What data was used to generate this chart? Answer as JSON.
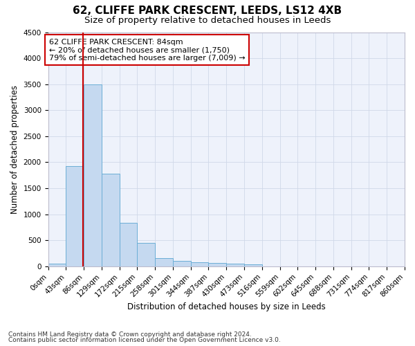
{
  "title1": "62, CLIFFE PARK CRESCENT, LEEDS, LS12 4XB",
  "title2": "Size of property relative to detached houses in Leeds",
  "xlabel": "Distribution of detached houses by size in Leeds",
  "ylabel": "Number of detached properties",
  "bar_color": "#c5d9f0",
  "bar_edge_color": "#6baed6",
  "grid_color": "#d0d8e8",
  "bg_color": "#eef2fb",
  "annotation_box_color": "#cc0000",
  "annotation_line1": "62 CLIFFE PARK CRESCENT: 84sqm",
  "annotation_line2": "← 20% of detached houses are smaller (1,750)",
  "annotation_line3": "79% of semi-detached houses are larger (7,009) →",
  "property_line_x": 84,
  "property_line_color": "#cc0000",
  "bin_edges": [
    0,
    43,
    86,
    129,
    172,
    215,
    258,
    301,
    344,
    387,
    430,
    473,
    516,
    559,
    602,
    645,
    688,
    731,
    774,
    817,
    860
  ],
  "bar_heights": [
    50,
    1920,
    3500,
    1780,
    840,
    455,
    160,
    100,
    75,
    60,
    50,
    40,
    0,
    0,
    0,
    0,
    0,
    0,
    0,
    0
  ],
  "ylim": [
    0,
    4500
  ],
  "yticks": [
    0,
    500,
    1000,
    1500,
    2000,
    2500,
    3000,
    3500,
    4000,
    4500
  ],
  "footer1": "Contains HM Land Registry data © Crown copyright and database right 2024.",
  "footer2": "Contains public sector information licensed under the Open Government Licence v3.0.",
  "title1_fontsize": 11,
  "title2_fontsize": 9.5,
  "tick_fontsize": 7.5,
  "label_fontsize": 8.5,
  "annotation_fontsize": 8,
  "footer_fontsize": 6.5
}
